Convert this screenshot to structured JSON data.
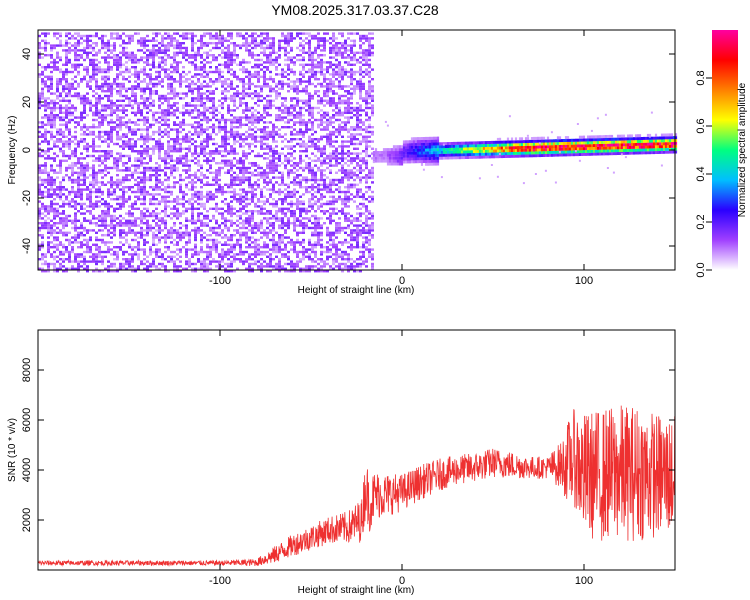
{
  "title": "YM08.2025.317.03.37.C28",
  "chart_data": [
    {
      "type": "heatmap",
      "xlabel": "Height of straight line (km)",
      "ylabel": "Frequency (Hz)",
      "xlim": [
        -200,
        150
      ],
      "ylim": [
        -50,
        50
      ],
      "xticks": [
        -100,
        0,
        100
      ],
      "xtick_labels": [
        "-100",
        "0",
        "100"
      ],
      "yticks": [
        -40,
        -20,
        0,
        20,
        40
      ],
      "ytick_labels": [
        "-40",
        "-20",
        "0",
        "20",
        "40"
      ],
      "colorbar": {
        "label": "Normalized spectral amplitude",
        "range": [
          0,
          1
        ],
        "ticks": [
          0.0,
          0.2,
          0.4,
          0.6,
          0.8
        ],
        "tick_labels": [
          "0.0",
          "0.2",
          "0.4",
          "0.6",
          "0.8"
        ],
        "colors": [
          "#ffffff",
          "#a040ff",
          "#2a00ff",
          "#00bfff",
          "#00ff80",
          "#ffff00",
          "#ff8000",
          "#ff0000",
          "#ff00a0"
        ]
      },
      "regions": [
        {
          "x_range": [
            -200,
            -16
          ],
          "f_range": [
            -50,
            50
          ],
          "amplitude": 0.05
        },
        {
          "x_range": [
            -16,
            150
          ],
          "center_freq": 0,
          "amplitude_range": [
            0.1,
            1.0
          ]
        }
      ]
    },
    {
      "type": "line",
      "xlabel": "Height of straight line (km)",
      "ylabel": "SNR (10 * v/v)",
      "xlim": [
        -200,
        150
      ],
      "ylim": [
        0,
        9600
      ],
      "xticks": [
        -100,
        0,
        100
      ],
      "xtick_labels": [
        "-100",
        "0",
        "100"
      ],
      "yticks": [
        2000,
        4000,
        6000,
        8000
      ],
      "ytick_labels": [
        "2000",
        "4000",
        "6000",
        "8000"
      ],
      "color": "#ee3030",
      "x": [
        -200,
        -150,
        -100,
        -80,
        -70,
        -60,
        -50,
        -40,
        -30,
        -22,
        -20,
        -18,
        -15,
        -10,
        0,
        10,
        20,
        30,
        40,
        50,
        60,
        70,
        80,
        88,
        90,
        95,
        100,
        110,
        120,
        130,
        140,
        150
      ],
      "y": [
        280,
        280,
        280,
        300,
        600,
        1000,
        1300,
        1600,
        1700,
        2000,
        3400,
        2600,
        3000,
        3000,
        3100,
        3500,
        3800,
        4000,
        4100,
        4300,
        4200,
        4100,
        4100,
        4200,
        4300,
        4500,
        3800,
        3800,
        3900,
        3900,
        3800,
        3800
      ],
      "spread": [
        200,
        200,
        200,
        300,
        700,
        900,
        1000,
        1100,
        1300,
        1800,
        2600,
        2200,
        2000,
        1800,
        1500,
        1400,
        1300,
        1200,
        1200,
        1200,
        1100,
        900,
        900,
        2000,
        3000,
        4000,
        5000,
        5400,
        5500,
        5500,
        5000,
        4800
      ]
    }
  ]
}
